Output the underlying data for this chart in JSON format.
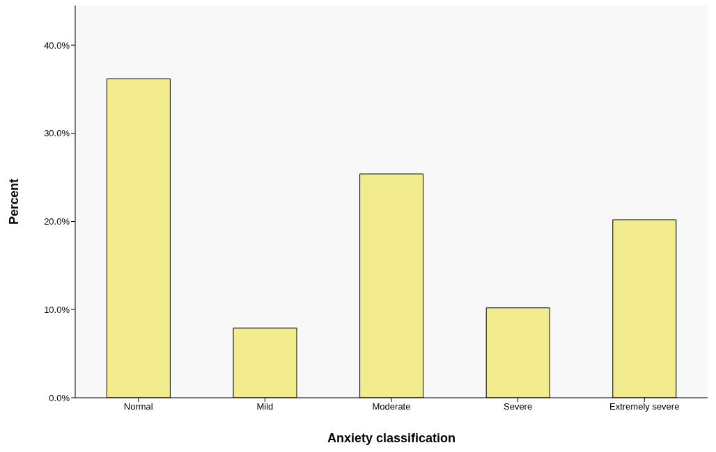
{
  "chart_data": {
    "type": "bar",
    "xlabel": "Anxiety classification",
    "ylabel": "Percent",
    "categories": [
      "Normal",
      "Mild",
      "Moderate",
      "Severe",
      "Extremely severe"
    ],
    "values": [
      36.2,
      7.9,
      25.4,
      10.2,
      20.2
    ],
    "color": "#f2ec8f",
    "ylim": [
      0,
      44.5
    ],
    "yticks": [
      {
        "value": 0,
        "label": "0.0%"
      },
      {
        "value": 10,
        "label": "10.0%"
      },
      {
        "value": 20,
        "label": "20.0%"
      },
      {
        "value": 30,
        "label": "30.0%"
      },
      {
        "value": 40,
        "label": "40.0%"
      }
    ],
    "grid": false,
    "legend": false
  }
}
